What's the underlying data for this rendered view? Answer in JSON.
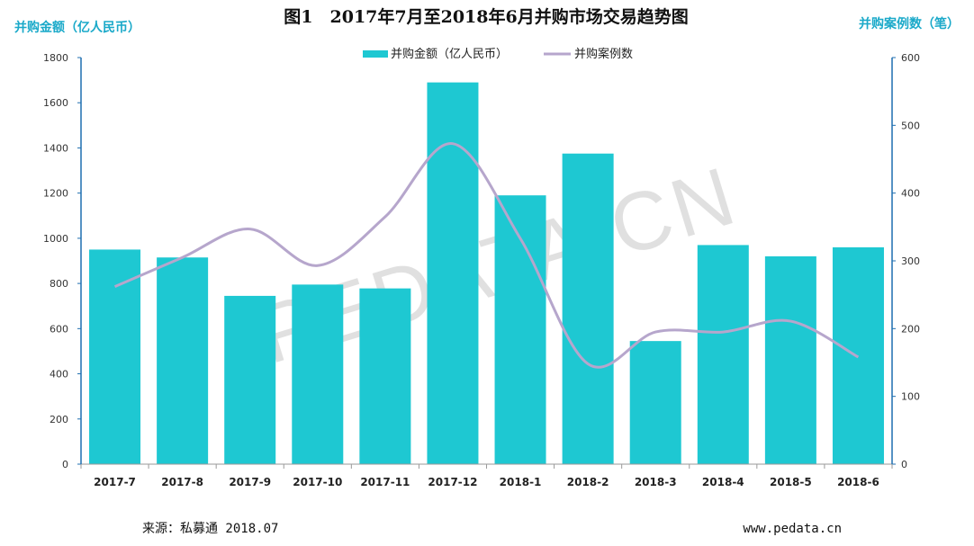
{
  "chart_data": {
    "type": "bar",
    "title": "图1　2017年7月至2018年6月并购市场交易趋势图",
    "categories": [
      "2017-7",
      "2017-8",
      "2017-9",
      "2017-10",
      "2017-11",
      "2017-12",
      "2018-1",
      "2018-2",
      "2018-3",
      "2018-4",
      "2018-5",
      "2018-6"
    ],
    "series": [
      {
        "name": "并购金额（亿人民币）",
        "type": "bar",
        "axis": "left",
        "color": "#1ec8d2",
        "values": [
          950,
          915,
          745,
          795,
          778,
          1690,
          1190,
          1375,
          545,
          970,
          920,
          960
        ]
      },
      {
        "name": "并购案例数",
        "type": "line",
        "axis": "right",
        "color": "#b6a6cc",
        "values": [
          262,
          305,
          347,
          293,
          365,
          473,
          333,
          148,
          195,
          195,
          211,
          158
        ]
      }
    ],
    "ylabel_left": "并购金额（亿人民币）",
    "ylabel_right": "并购案例数（笔）",
    "ylim_left": [
      0,
      1800
    ],
    "ylim_right": [
      0,
      600
    ],
    "yticks_left": [
      "0",
      "200",
      "400",
      "600",
      "800",
      "1000",
      "1200",
      "1400",
      "1600",
      "1800"
    ],
    "yticks_right": [
      "0",
      "100",
      "200",
      "300",
      "400",
      "500",
      "600"
    ],
    "legend_position": "top-center",
    "grid": false
  },
  "watermark": "PEDATA.CN",
  "footer": {
    "source": "来源：私募通 2018.07",
    "website": "www.pedata.cn"
  }
}
